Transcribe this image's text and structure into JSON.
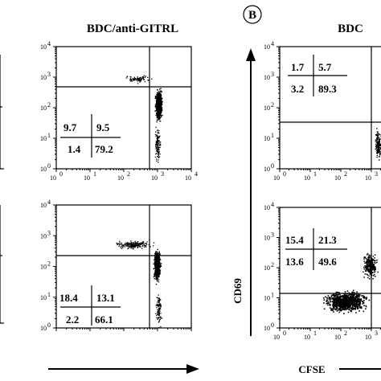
{
  "title_left": "BDC/anti-GITRL",
  "title_right": "BDC",
  "panel_letter": "B",
  "axis": {
    "y_label": "CD69",
    "x_label": "CFSE"
  },
  "tick_labels": {
    "x": [
      "10",
      "0",
      "10",
      "1",
      "10",
      "2",
      "10",
      "3",
      "10",
      "4"
    ],
    "y": [
      "10",
      "0",
      "10",
      "1",
      "10",
      "2",
      "10",
      "3",
      "10",
      "4"
    ]
  },
  "panels": [
    {
      "id": "gitrl-top",
      "quadrants": [
        "9.7",
        "9.5",
        "1.4",
        "79.2"
      ]
    },
    {
      "id": "gitrl-bottom",
      "quadrants": [
        "18.4",
        "13.1",
        "2.2",
        "66.1"
      ]
    },
    {
      "id": "bdc-top",
      "quadrants": [
        "1.7",
        "5.7",
        "3.2",
        "89.3"
      ]
    },
    {
      "id": "bdc-bottom",
      "quadrants": [
        "15.4",
        "21.3",
        "13.6",
        "49.6"
      ]
    }
  ]
}
